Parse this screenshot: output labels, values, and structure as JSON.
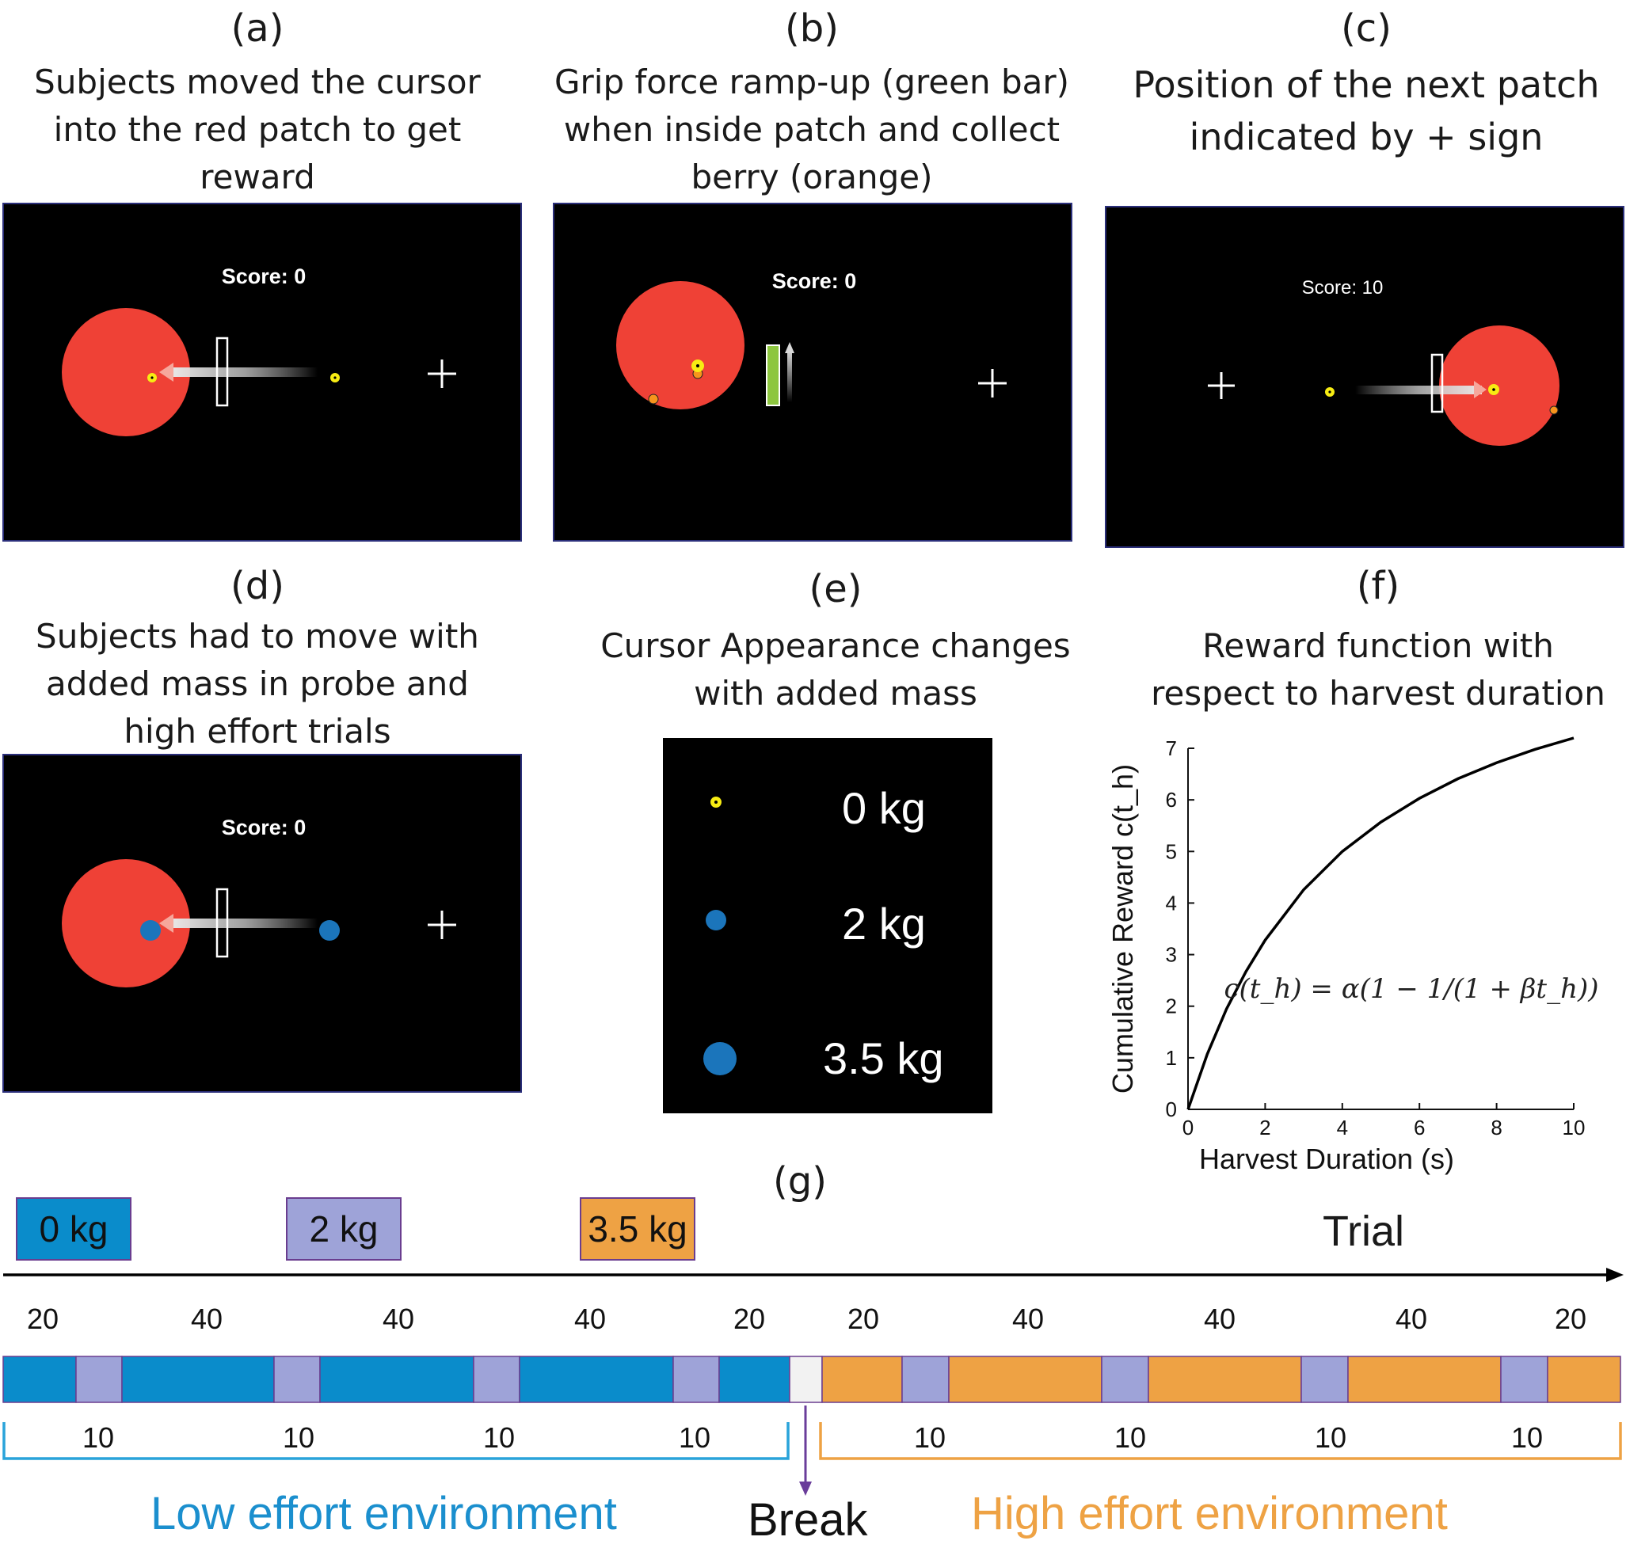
{
  "panels": {
    "a": {
      "label": "(a)",
      "title": [
        "Subjects moved the cursor",
        "into the red patch to get",
        "reward"
      ],
      "score": "Score: 0"
    },
    "b": {
      "label": "(b)",
      "title": [
        "Grip force ramp-up (green bar)",
        "when inside patch and collect",
        "berry (orange)"
      ],
      "score": "Score: 0"
    },
    "c": {
      "label": "(c)",
      "title": [
        "Position of the next patch",
        "indicated by + sign"
      ],
      "score": "Score: 10"
    },
    "d": {
      "label": "(d)",
      "title": [
        "Subjects had to move with",
        "added mass in probe and",
        "high effort trials"
      ],
      "score": "Score: 0"
    },
    "e": {
      "label": "(e)",
      "title": [
        "Cursor Appearance changes",
        "with added mass"
      ],
      "masses": [
        "0 kg",
        "2 kg",
        "3.5 kg"
      ]
    },
    "f": {
      "label": "(f)",
      "title": [
        "Reward function with",
        "respect to harvest duration"
      ]
    },
    "g": {
      "label": "(g)"
    }
  },
  "colors": {
    "patch": "#ef4136",
    "cursor": "#f7ec13",
    "cursor_mass": "#1b75bb",
    "berry": "#f7941d",
    "grip": "#8dc63f",
    "low": "#0a8ccb",
    "probe": "#9ea3d8",
    "high": "#eea244",
    "break": "#f2f2f2"
  },
  "chart_data": {
    "type": "line",
    "title": "Reward function with respect to harvest duration",
    "xlabel": "Harvest Duration (s)",
    "ylabel": "Cumulative Reward c(t_h)",
    "xlim": [
      0,
      10
    ],
    "ylim": [
      0,
      7
    ],
    "xticks": [
      "0",
      "2",
      "4",
      "6",
      "8",
      "10"
    ],
    "yticks": [
      "0",
      "1",
      "2",
      "3",
      "4",
      "5",
      "6",
      "7"
    ],
    "equation": "c(t_h) = α(1 − 1/(1 + βt_h))",
    "series": [
      {
        "x": [
          0,
          0.5,
          1,
          1.5,
          2,
          3,
          4,
          5,
          6,
          7,
          8,
          9,
          10
        ],
        "y": [
          0,
          1.07,
          1.95,
          2.67,
          3.28,
          4.26,
          5.0,
          5.57,
          6.03,
          6.41,
          6.72,
          6.98,
          7.2
        ]
      }
    ]
  },
  "timeline": {
    "legend": [
      "0 kg",
      "2 kg",
      "3.5 kg"
    ],
    "axis_label": "Trial",
    "top_numbers": [
      "20",
      "40",
      "40",
      "40",
      "20",
      "20",
      "40",
      "40",
      "40",
      "20"
    ],
    "bottom_numbers": [
      "10",
      "10",
      "10",
      "10",
      "10",
      "10",
      "10",
      "10"
    ],
    "low_label": "Low effort environment",
    "break_label": "Break",
    "high_label": "High effort environment"
  }
}
